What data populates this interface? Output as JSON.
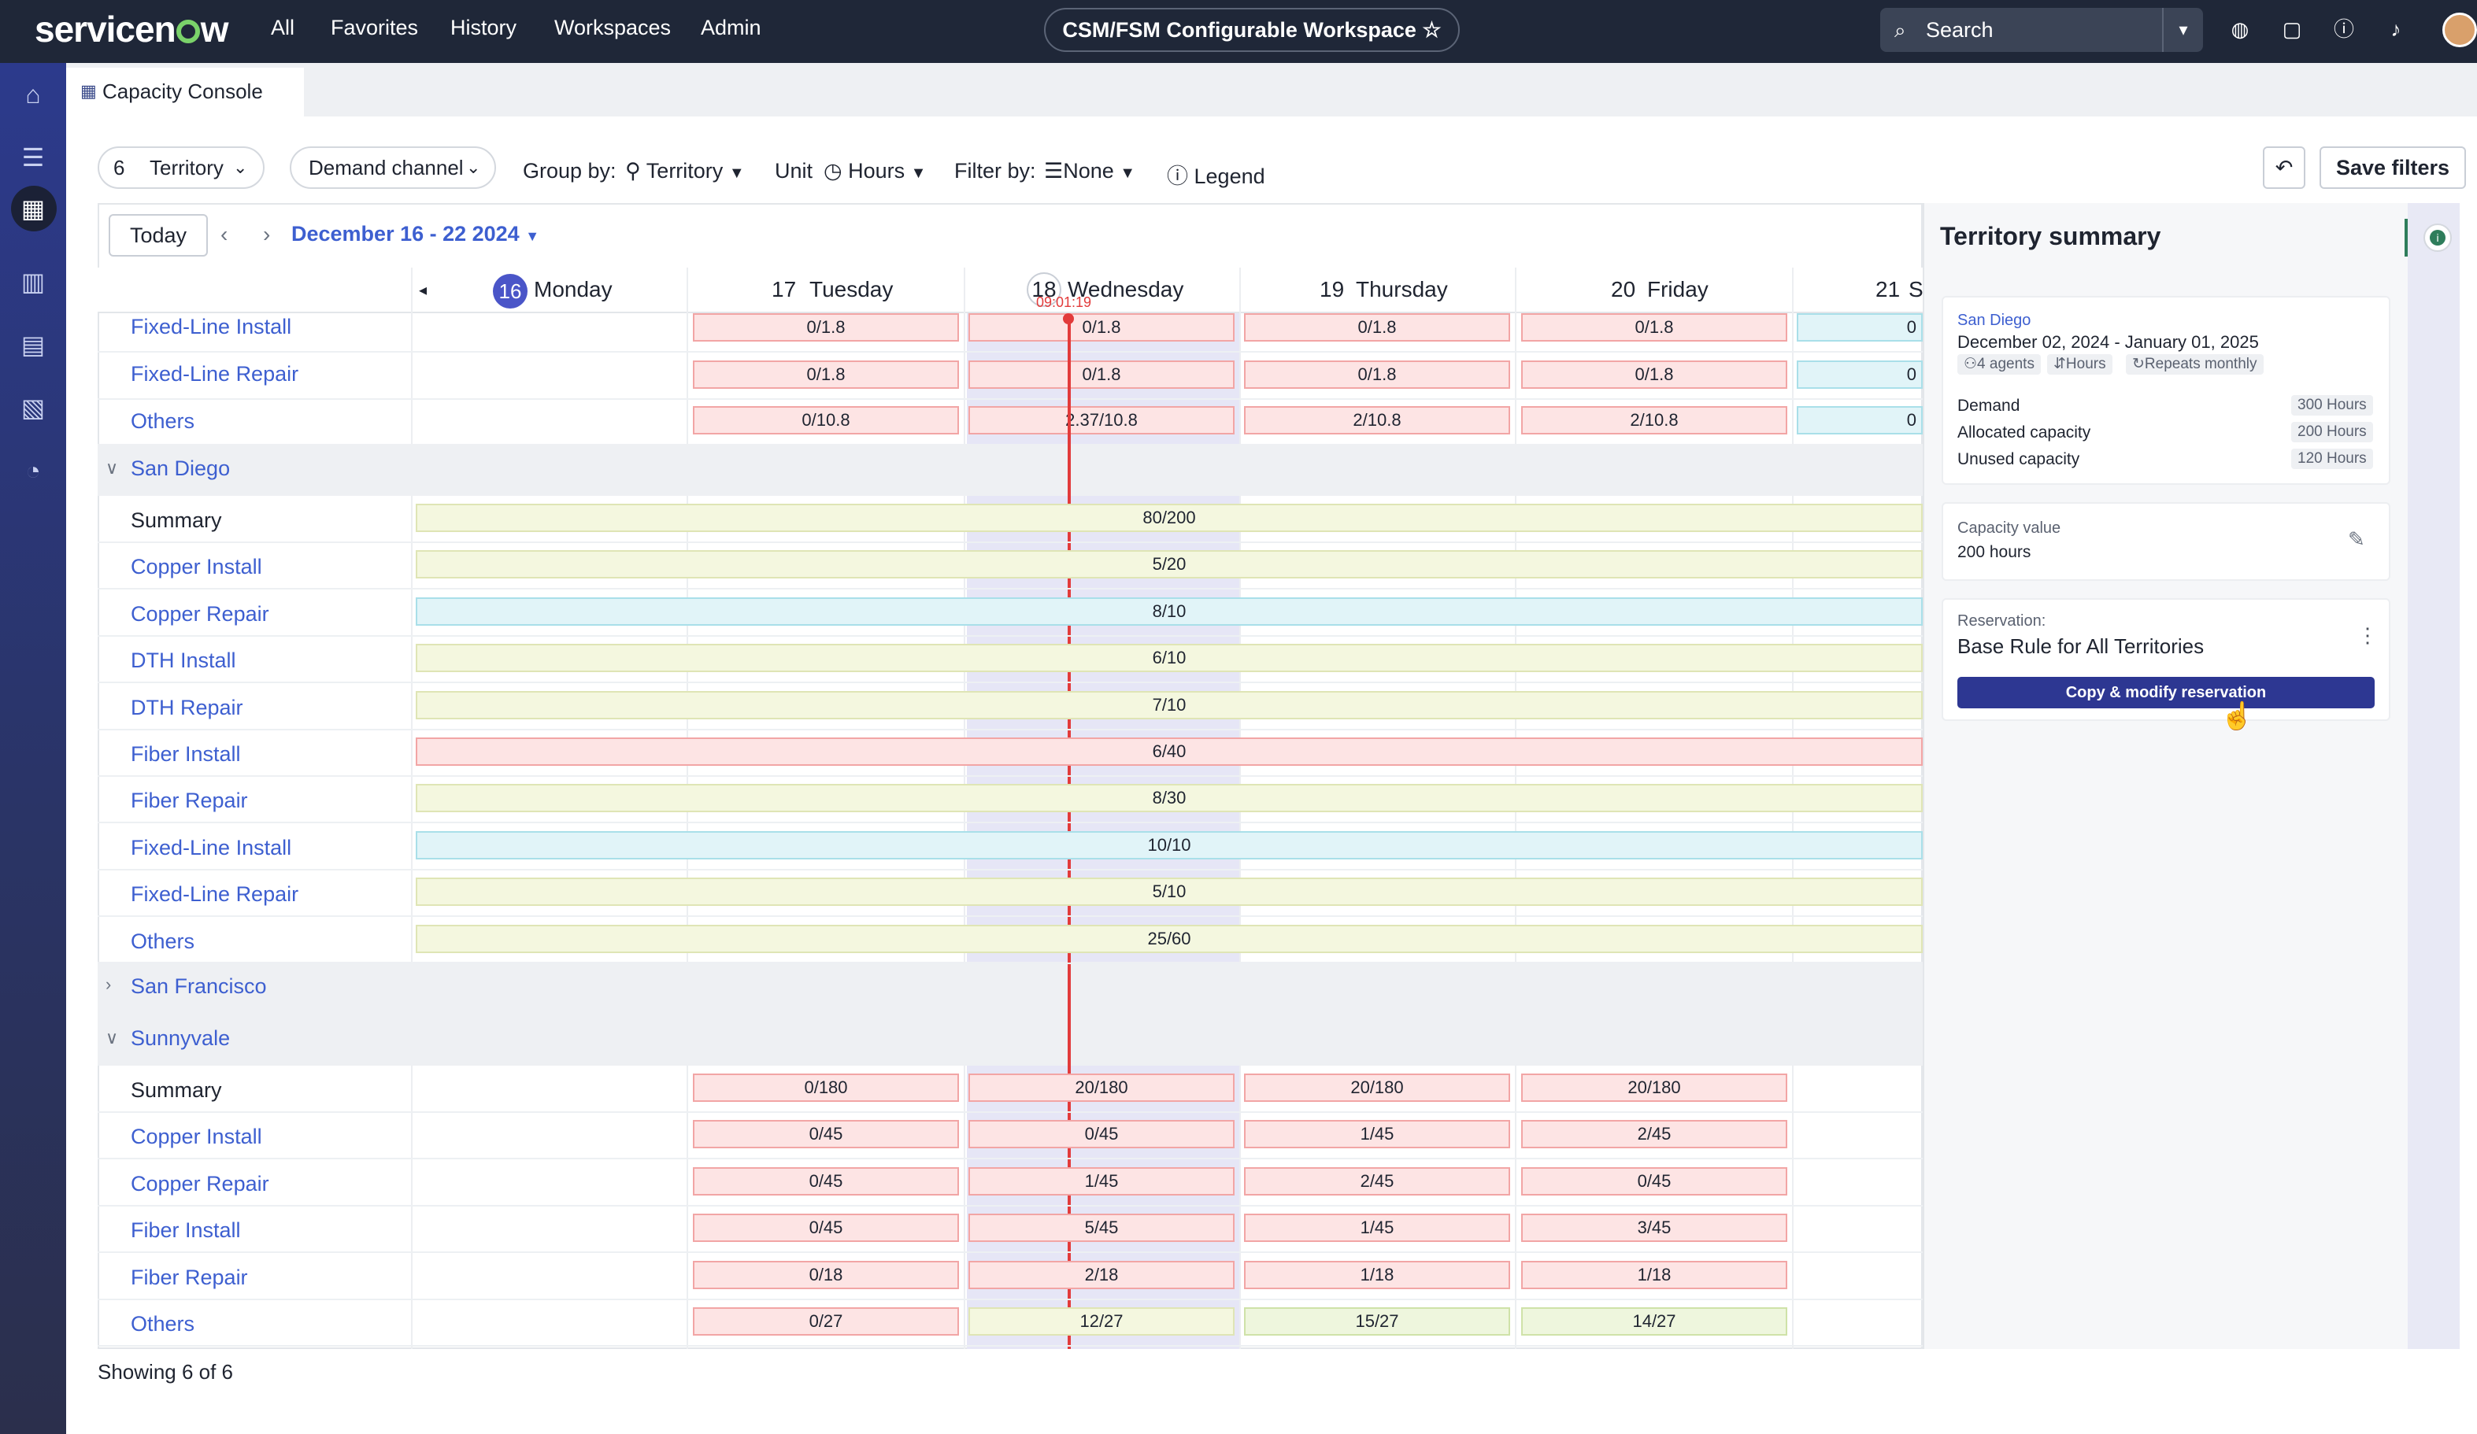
{
  "topbar": {
    "logo": "servicenow",
    "nav": [
      "All",
      "Favorites",
      "History",
      "Workspaces",
      "Admin"
    ],
    "workspace": "CSM/FSM Configurable Workspace",
    "search_placeholder": "Search",
    "icons": [
      "globe-icon",
      "chat-icon",
      "help-icon",
      "bell-icon",
      "avatar"
    ]
  },
  "tab": {
    "label": "Capacity Console"
  },
  "toolbar": {
    "territory_count": "6",
    "territory_label": "Territory",
    "demand_channel": "Demand channel",
    "group_by_label": "Group by:",
    "group_by_value": "Territory",
    "unit_label": "Unit",
    "unit_value": "Hours",
    "filter_by_label": "Filter by:",
    "filter_by_value": "None",
    "legend": "Legend",
    "save_filters": "Save filters"
  },
  "calendar": {
    "today": "Today",
    "range": "December 16 - 22 2024",
    "now_time": "09:01:19",
    "days": [
      {
        "num": "16",
        "name": "Monday"
      },
      {
        "num": "17",
        "name": "Tuesday"
      },
      {
        "num": "18",
        "name": "Wednesday"
      },
      {
        "num": "19",
        "name": "Thursday"
      },
      {
        "num": "20",
        "name": "Friday"
      },
      {
        "num": "21",
        "name": "S"
      }
    ]
  },
  "rows_top": [
    {
      "label": "Fixed-Line Install",
      "cells": [
        "0/1.8",
        "0/1.8",
        "0/1.8",
        "0/1.8",
        "0"
      ]
    },
    {
      "label": "Fixed-Line Repair",
      "cells": [
        "0/1.8",
        "0/1.8",
        "0/1.8",
        "0/1.8",
        "0"
      ]
    },
    {
      "label": "Others",
      "cells": [
        "0/10.8",
        "2.37/10.8",
        "2/10.8",
        "2/10.8",
        "0"
      ]
    }
  ],
  "groups": {
    "san_diego": "San Diego",
    "san_francisco": "San Francisco",
    "sunnyvale": "Sunnyvale"
  },
  "san_diego_rows": [
    {
      "label": "Summary",
      "value": "80/200"
    },
    {
      "label": "Copper Install",
      "value": "5/20"
    },
    {
      "label": "Copper Repair",
      "value": "8/10"
    },
    {
      "label": "DTH Install",
      "value": "6/10"
    },
    {
      "label": "DTH Repair",
      "value": "7/10"
    },
    {
      "label": "Fiber Install",
      "value": "6/40"
    },
    {
      "label": "Fiber Repair",
      "value": "8/30"
    },
    {
      "label": "Fixed-Line Install",
      "value": "10/10"
    },
    {
      "label": "Fixed-Line Repair",
      "value": "5/10"
    },
    {
      "label": "Others",
      "value": "25/60"
    }
  ],
  "sunnyvale_rows": [
    {
      "label": "Summary",
      "cells": [
        "0/180",
        "20/180",
        "20/180",
        "20/180"
      ]
    },
    {
      "label": "Copper Install",
      "cells": [
        "0/45",
        "0/45",
        "1/45",
        "2/45"
      ]
    },
    {
      "label": "Copper Repair",
      "cells": [
        "0/45",
        "1/45",
        "2/45",
        "0/45"
      ]
    },
    {
      "label": "Fiber Install",
      "cells": [
        "0/45",
        "5/45",
        "1/45",
        "3/45"
      ]
    },
    {
      "label": "Fiber Repair",
      "cells": [
        "0/18",
        "2/18",
        "1/18",
        "1/18"
      ]
    },
    {
      "label": "Others",
      "cells": [
        "0/27",
        "12/27",
        "15/27",
        "14/27"
      ]
    }
  ],
  "footer": "Showing 6 of 6",
  "panel": {
    "title": "Territory summary",
    "territory": "San Diego",
    "dates": "December 02, 2024 - January 01, 2025",
    "agents": "4 agents",
    "unit": "Hours",
    "repeats": "Repeats monthly",
    "stats": [
      {
        "label": "Demand",
        "value": "300 Hours"
      },
      {
        "label": "Allocated capacity",
        "value": "200 Hours"
      },
      {
        "label": "Unused capacity",
        "value": "120 Hours"
      }
    ],
    "capacity_label": "Capacity value",
    "capacity_value": "200 hours",
    "reservation_label": "Reservation:",
    "reservation_value": "Base Rule for All Territories",
    "copy_button": "Copy & modify reservation"
  },
  "colors": {
    "topbar": "#1f2738",
    "link": "#3d5fd0",
    "primary_button": "#2d3792",
    "now_line": "#e23b3b"
  }
}
